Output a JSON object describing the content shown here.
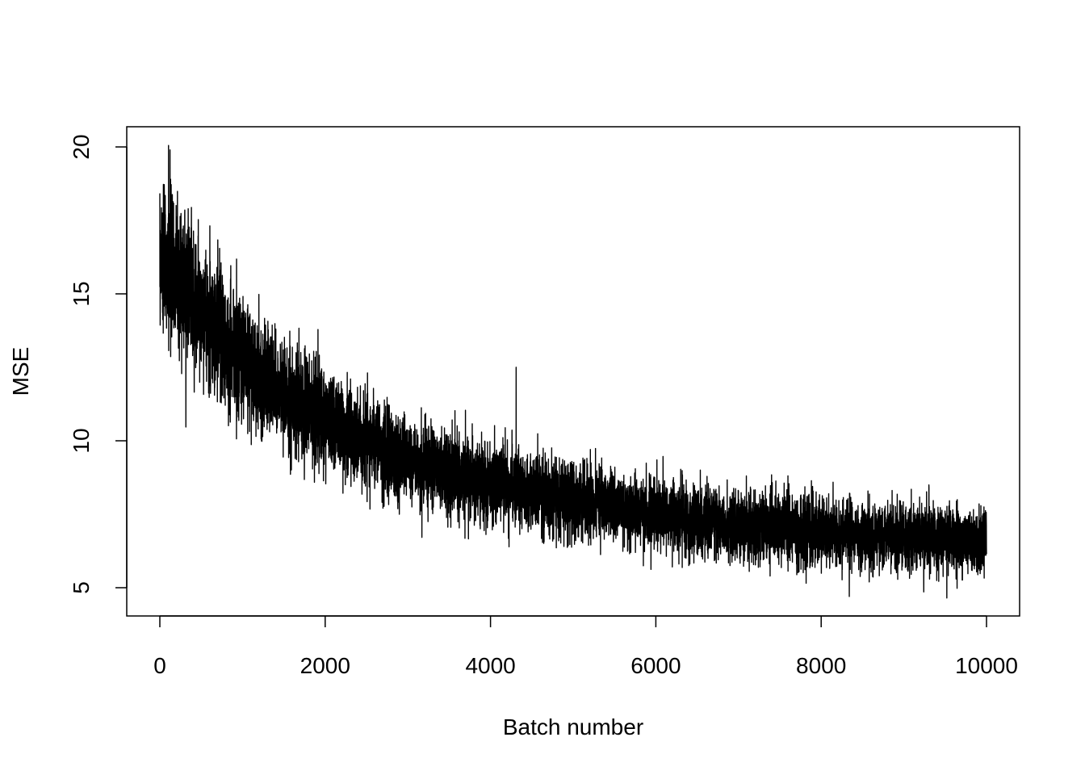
{
  "chart_data": {
    "type": "line",
    "title": "",
    "xlabel": "Batch number",
    "ylabel": "MSE",
    "xlim": [
      0,
      10000
    ],
    "ylim": [
      5,
      20
    ],
    "x_ticks": [
      0,
      2000,
      4000,
      6000,
      8000,
      10000
    ],
    "y_ticks": [
      5,
      10,
      15,
      20
    ],
    "grid": false,
    "legend": "none",
    "line_color": "#000000",
    "series": [
      {
        "x": [
          0,
          100,
          200,
          300,
          400,
          500,
          600,
          700,
          800,
          900,
          1000,
          1200,
          1400,
          1600,
          1800,
          2000,
          2200,
          2400,
          2600,
          2800,
          3000,
          3200,
          3400,
          3600,
          3800,
          4000,
          4300,
          4600,
          5000,
          5500,
          6000,
          6500,
          7000,
          7500,
          8000,
          8500,
          9000,
          9500,
          10000
        ],
        "y": [
          16.3,
          16.0,
          15.6,
          15.2,
          14.8,
          14.4,
          14.0,
          13.7,
          13.4,
          13.1,
          12.8,
          12.3,
          11.8,
          11.4,
          11.1,
          10.8,
          10.5,
          10.2,
          9.9,
          9.6,
          9.4,
          9.2,
          9.0,
          8.8,
          8.7,
          8.6,
          8.4,
          8.2,
          8.0,
          7.7,
          7.5,
          7.3,
          7.1,
          7.0,
          6.9,
          6.8,
          6.7,
          6.7,
          6.7
        ],
        "noise_sd": [
          1.3,
          1.3,
          1.25,
          1.2,
          1.15,
          1.1,
          1.1,
          1.05,
          1.0,
          1.0,
          1.0,
          0.95,
          0.9,
          0.9,
          0.85,
          0.85,
          0.8,
          0.8,
          0.75,
          0.75,
          0.7,
          0.7,
          0.7,
          0.7,
          0.7,
          0.7,
          0.65,
          0.65,
          0.65,
          0.6,
          0.6,
          0.6,
          0.6,
          0.6,
          0.6,
          0.55,
          0.55,
          0.55,
          0.55
        ],
        "points": 10000,
        "spikes": [
          {
            "x": 105,
            "y": 20.05
          },
          {
            "x": 4310,
            "y": 12.5
          },
          {
            "x": 9520,
            "y": 4.65
          },
          {
            "x": 8340,
            "y": 4.7
          }
        ]
      }
    ]
  }
}
